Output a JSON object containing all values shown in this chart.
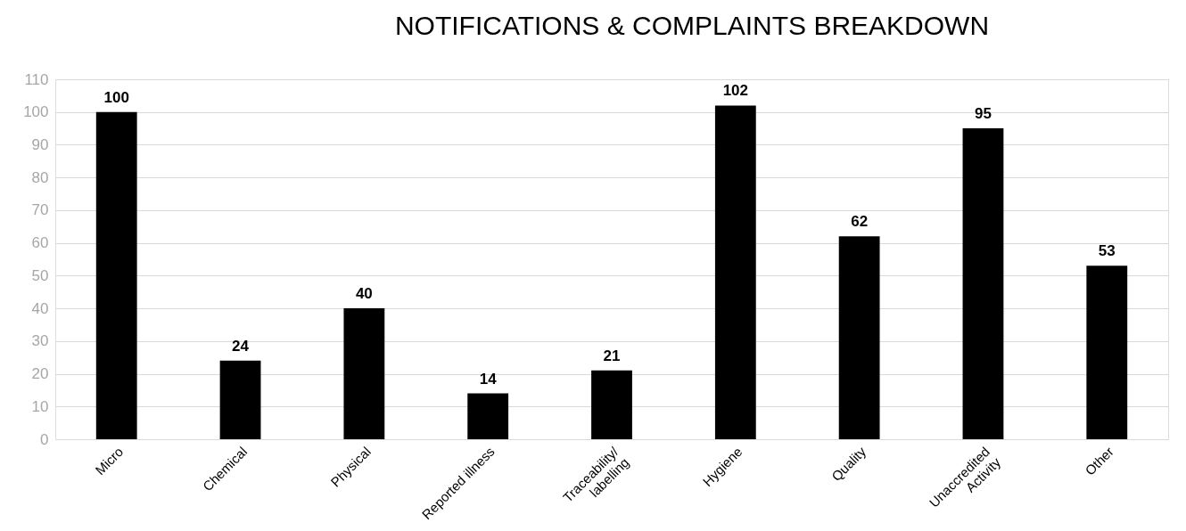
{
  "chart_data": {
    "type": "bar",
    "title": "NOTIFICATIONS & COMPLAINTS BREAKDOWN",
    "categories": [
      "Micro",
      "Chemical",
      "Physical",
      "Reported illness",
      "Traceability/\nlabelling",
      "Hygiene",
      "Quality",
      "Unaccredited\nActivity",
      "Other"
    ],
    "values": [
      100,
      24,
      40,
      14,
      21,
      102,
      62,
      95,
      53
    ],
    "color": "#000000",
    "ylim": [
      0,
      110
    ],
    "yticks": [
      0,
      10,
      20,
      30,
      40,
      50,
      60,
      70,
      80,
      90,
      100,
      110
    ],
    "grid": "y",
    "data_labels": true
  }
}
